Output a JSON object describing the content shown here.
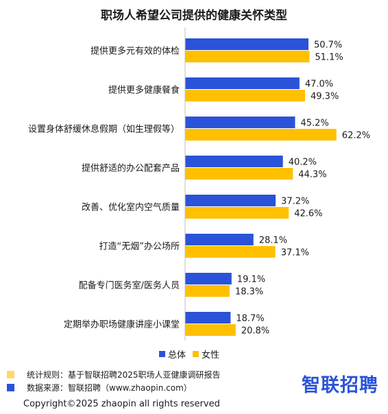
{
  "chart_data": {
    "type": "bar",
    "orientation": "horizontal",
    "title": "职场人希望公司提供的健康关怀类型",
    "categories": [
      "提供更多元有效的体检",
      "提供更多健康餐食",
      "设置身体舒缓休息假期（如生理假等）",
      "提供舒适的办公配套产品",
      "改善、优化室内空气质量",
      "打造“无烟”办公场所",
      "配备专门医务室/医务人员",
      "定期举办职场健康讲座小课堂"
    ],
    "series": [
      {
        "name": "总体",
        "color": "#2a53d9",
        "values": [
          50.7,
          47.0,
          45.2,
          40.2,
          37.2,
          28.1,
          19.1,
          18.7
        ],
        "labels": [
          "50.7%",
          "47.0%",
          "45.2%",
          "40.2%",
          "37.2%",
          "28.1%",
          "19.1%",
          "18.7%"
        ]
      },
      {
        "name": "女性",
        "color": "#ffc000",
        "values": [
          51.1,
          49.3,
          62.2,
          44.3,
          42.6,
          37.1,
          18.3,
          20.8
        ],
        "labels": [
          "51.1%",
          "49.3%",
          "62.2%",
          "44.3%",
          "42.6%",
          "37.1%",
          "18.3%",
          "20.8%"
        ]
      }
    ],
    "legend_position": "bottom",
    "grid": false
  },
  "notes": [
    {
      "color": "#ffd966",
      "text": "统计规则：基于智联招聘2025职场人亚健康调研报告"
    },
    {
      "color": "#2a53d9",
      "text": "数据来源：智联招聘（www.zhaopin.com）"
    }
  ],
  "brand": "智联招聘",
  "copyright": "Copyright©2025 zhaopin all rights reserved"
}
